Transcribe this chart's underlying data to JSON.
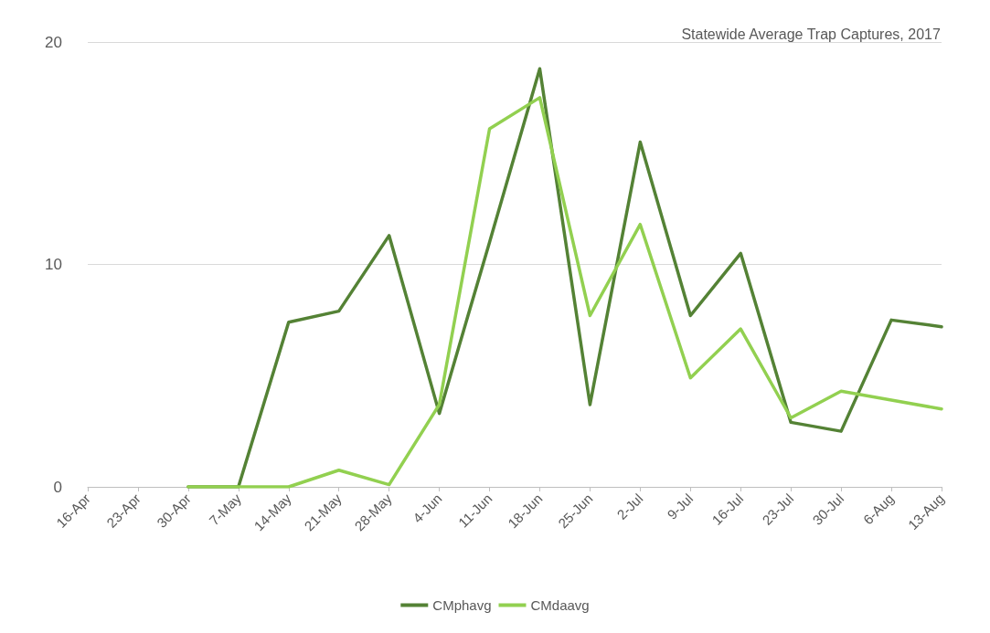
{
  "chart_data": {
    "type": "line",
    "title": "Statewide Average Trap Captures, 2017",
    "categories": [
      "16-Apr",
      "23-Apr",
      "30-Apr",
      "7-May",
      "14-May",
      "21-May",
      "28-May",
      "4-Jun",
      "11-Jun",
      "18-Jun",
      "25-Jun",
      "2-Jul",
      "9-Jul",
      "16-Jul",
      "23-Jul",
      "30-Jul",
      "6-Aug",
      "13-Aug"
    ],
    "series": [
      {
        "name": "CMphavg",
        "color": "#548235",
        "values": [
          null,
          null,
          0,
          0,
          7.4,
          7.9,
          11.3,
          3.3,
          11,
          18.8,
          3.7,
          15.5,
          7.7,
          10.5,
          2.9,
          2.5,
          7.5,
          7.2
        ]
      },
      {
        "name": "CMdaavg",
        "color": "#92d050",
        "values": [
          null,
          null,
          0,
          0,
          0,
          0.75,
          0.1,
          3.7,
          16.1,
          17.5,
          7.7,
          11.8,
          4.9,
          7.1,
          3.1,
          4.3,
          3.9,
          3.5
        ]
      }
    ],
    "ylim": [
      0,
      20
    ],
    "yticks": [
      0,
      10,
      20
    ],
    "grid": "y",
    "legend": "bottom",
    "marker": "none",
    "line_style": "solid"
  }
}
